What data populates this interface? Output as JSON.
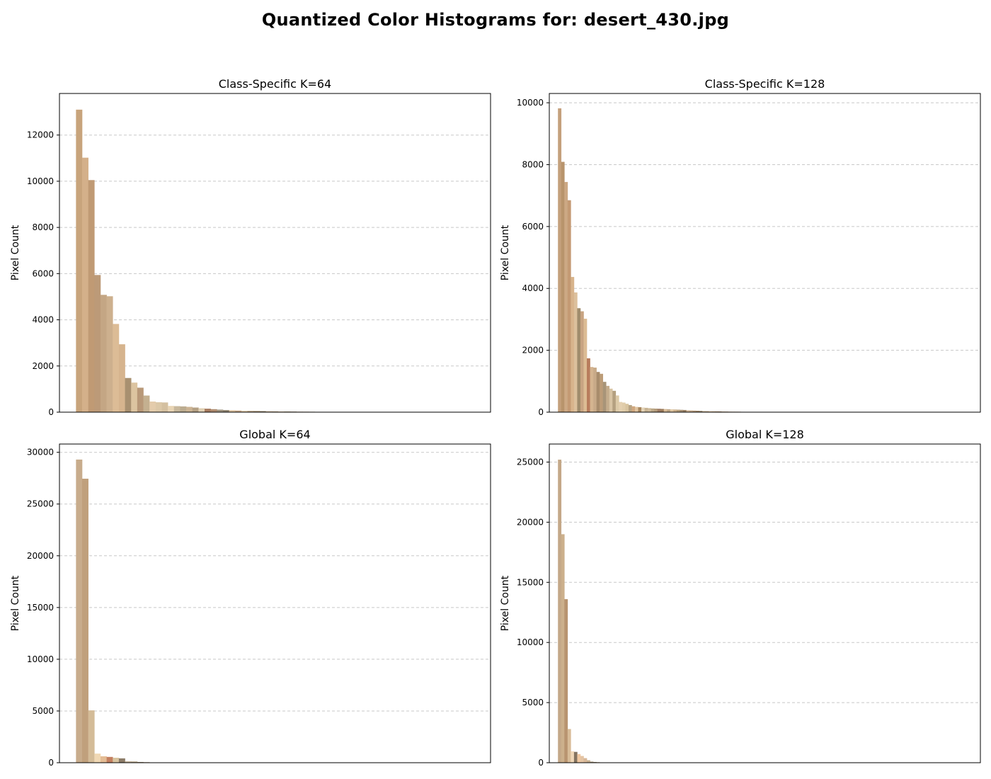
{
  "figure": {
    "title": "Quantized Color Histograms for: desert_430.jpg"
  },
  "chart_data": [
    {
      "type": "bar",
      "title": "Class-Specific K=64",
      "xlabel": "",
      "ylabel": "Pixel Count",
      "ylim": [
        0,
        13800
      ],
      "yticks": [
        0,
        2000,
        4000,
        6000,
        8000,
        10000,
        12000
      ],
      "grid": "y-dashed",
      "n_bins": 64,
      "values": [
        13100,
        11020,
        10050,
        5940,
        5080,
        5020,
        3820,
        2940,
        1480,
        1280,
        1060,
        720,
        460,
        430,
        420,
        270,
        260,
        250,
        230,
        200,
        170,
        150,
        130,
        110,
        90,
        80,
        70,
        60,
        55,
        50,
        45,
        40,
        35,
        30,
        28,
        25,
        22,
        20,
        18,
        15,
        12,
        10,
        8,
        6,
        4
      ],
      "colors": [
        "#c8a47c",
        "#d4b08a",
        "#c09a74",
        "#bc9a78",
        "#c4a684",
        "#cdb08e",
        "#dcbc96",
        "#d6b48e",
        "#a89070",
        "#dcc4a0",
        "#b89878",
        "#c4b090",
        "#e4ccac",
        "#dcc8a8",
        "#d4c0a0",
        "#e8d4b4",
        "#c8b89c",
        "#bcac90",
        "#ccb494",
        "#b4a084",
        "#e0d0b4",
        "#a87c60",
        "#b08c70",
        "#a09480",
        "#908470",
        "#dcc09c",
        "#c8a888",
        "#e0c8a8",
        "#b8a080",
        "#a08868",
        "#8c7c64",
        "#c4ac8c",
        "#b49c7c",
        "#d0b898",
        "#a0906c",
        "#988468",
        "#c0a88c",
        "#b09474",
        "#a88c6c",
        "#9c8060",
        "#c8a482",
        "#bc9c7a",
        "#d0b08c",
        "#b8a484",
        "#c0a07c"
      ]
    },
    {
      "type": "bar",
      "title": "Class-Specific K=128",
      "xlabel": "",
      "ylabel": "Pixel Count",
      "ylim": [
        0,
        10300
      ],
      "yticks": [
        0,
        2000,
        4000,
        6000,
        8000,
        10000
      ],
      "grid": "y-dashed",
      "n_bins": 128,
      "values": [
        9820,
        8090,
        7440,
        6850,
        4370,
        3870,
        3360,
        3260,
        3020,
        1740,
        1460,
        1440,
        1300,
        1240,
        980,
        850,
        760,
        690,
        540,
        330,
        310,
        270,
        230,
        190,
        170,
        160,
        150,
        140,
        130,
        120,
        115,
        110,
        105,
        100,
        95,
        90,
        85,
        80,
        75,
        70,
        60,
        55,
        50,
        45,
        40,
        36,
        32,
        30,
        28,
        26,
        24,
        22,
        20,
        18,
        16,
        15,
        14,
        12,
        10,
        9,
        8,
        7,
        6,
        5,
        4,
        3,
        2
      ],
      "colors": [
        "#c4a07c",
        "#b8946c",
        "#cca884",
        "#c49a74",
        "#d8b48c",
        "#dcc09c",
        "#a08c6c",
        "#c8a482",
        "#dcbc94",
        "#b87c5c",
        "#d4b490",
        "#c8aa88",
        "#a88c6c",
        "#bc9c78",
        "#a89478",
        "#c4ac8c",
        "#d8c4a4",
        "#b4a080",
        "#dccaa8",
        "#e4d0b0",
        "#e0ccaa",
        "#d8c4a0",
        "#b8a484",
        "#d0a880",
        "#e0c4a0",
        "#a88860",
        "#e4d4b8",
        "#c8b494",
        "#d0bc9c",
        "#bca888",
        "#b49c7c",
        "#a07c64",
        "#9c7c5c",
        "#d8bc98",
        "#c0a888",
        "#e0c8a4",
        "#ccb08c",
        "#b8a07c",
        "#a89074",
        "#988064",
        "#d0b494",
        "#c4a888",
        "#b49878",
        "#a48868",
        "#908064",
        "#c8b090",
        "#bca080",
        "#d4b894",
        "#c0a482",
        "#b09070",
        "#a08464",
        "#c8ac8c",
        "#bca284",
        "#d0b898",
        "#c4a684",
        "#b89a7a",
        "#ac906e",
        "#d8c0a0",
        "#ccb494",
        "#c0a888",
        "#b49c7c",
        "#a89070",
        "#9c8464",
        "#c8ae8e",
        "#bea080",
        "#d0b490",
        "#c2a282"
      ]
    },
    {
      "type": "bar",
      "title": "Global K=64",
      "xlabel": "",
      "ylabel": "Pixel Count",
      "ylim": [
        0,
        30800
      ],
      "yticks": [
        0,
        5000,
        10000,
        15000,
        20000,
        25000,
        30000
      ],
      "grid": "y-dashed",
      "n_bins": 64,
      "values": [
        29300,
        27450,
        5060,
        880,
        620,
        560,
        480,
        420,
        140,
        120,
        70,
        50,
        30
      ],
      "colors": [
        "#c8ac8c",
        "#c0a07c",
        "#d4bc98",
        "#f0d8b4",
        "#e4bc94",
        "#c48060",
        "#d8c4a0",
        "#8c7c68",
        "#c4b49c",
        "#b4a488",
        "#9c8c70",
        "#a89474",
        "#b09c80"
      ]
    },
    {
      "type": "bar",
      "title": "Global K=128",
      "xlabel": "",
      "ylabel": "Pixel Count",
      "ylim": [
        0,
        26500
      ],
      "yticks": [
        0,
        5000,
        10000,
        15000,
        20000,
        25000
      ],
      "grid": "y-dashed",
      "n_bins": 128,
      "values": [
        25200,
        19000,
        13600,
        2800,
        950,
        900,
        720,
        560,
        380,
        210,
        90,
        60,
        45,
        30,
        20
      ],
      "colors": [
        "#c4a888",
        "#ccb08c",
        "#b89470",
        "#d8bc98",
        "#f0d8b8",
        "#847460",
        "#f0c8a0",
        "#e4c4a4",
        "#d8b898",
        "#c8b090",
        "#a49478",
        "#9c8c74",
        "#b4a080",
        "#ac9878",
        "#a89274"
      ]
    }
  ]
}
